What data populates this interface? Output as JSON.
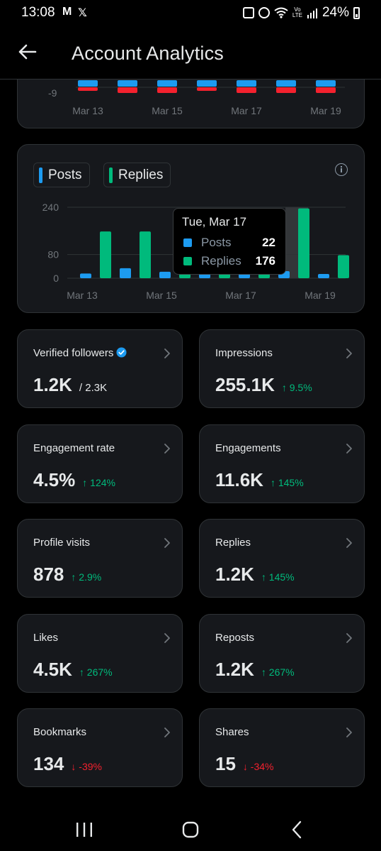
{
  "status": {
    "time": "13:08",
    "battery": "24%",
    "app_icons": [
      "gmail-icon",
      "x-icon"
    ],
    "right_icons": [
      "wallet-icon",
      "alarm-icon",
      "wifi-icon",
      "volte-icon",
      "signal-icon",
      "battery-icon"
    ]
  },
  "header": {
    "title": "Account Analytics"
  },
  "top_chart": {
    "y_tick": "-9",
    "x_labels": [
      "Mar 13",
      "Mar 15",
      "Mar 17",
      "Mar 19"
    ]
  },
  "chart": {
    "legend": [
      {
        "label": "Posts",
        "color": "#1d9bf0"
      },
      {
        "label": "Replies",
        "color": "#00ba7c"
      }
    ],
    "y_ticks": [
      "240",
      "80",
      "0"
    ],
    "x_labels": [
      "Mar 13",
      "Mar 15",
      "Mar 17",
      "Mar 19"
    ],
    "tooltip": {
      "date": "Tue, Mar 17",
      "rows": [
        {
          "name": "Posts",
          "value": "22",
          "color": "#1d9bf0"
        },
        {
          "name": "Replies",
          "value": "176",
          "color": "#00ba7c"
        }
      ]
    }
  },
  "chart_data": {
    "type": "bar",
    "categories": [
      "Mar 13",
      "Mar 14",
      "Mar 15",
      "Mar 16",
      "Mar 17",
      "Mar 18",
      "Mar 19"
    ],
    "series": [
      {
        "name": "Posts",
        "values": [
          16,
          34,
          22,
          20,
          22,
          24,
          14
        ]
      },
      {
        "name": "Replies",
        "values": [
          158,
          158,
          155,
          160,
          176,
          236,
          78
        ]
      }
    ],
    "ylim": [
      0,
      240
    ],
    "y_ticks": [
      0,
      80,
      240
    ],
    "highlighted_category": "Mar 18",
    "grid": true
  },
  "metrics": [
    {
      "label": "Verified followers",
      "value": "1.2K",
      "sub": "/ 2.3K",
      "change": "",
      "direction": "",
      "verified": true
    },
    {
      "label": "Impressions",
      "value": "255.1K",
      "sub": "",
      "change": "↑ 9.5%",
      "direction": "up"
    },
    {
      "label": "Engagement rate",
      "value": "4.5%",
      "sub": "",
      "change": "↑ 124%",
      "direction": "up"
    },
    {
      "label": "Engagements",
      "value": "11.6K",
      "sub": "",
      "change": "↑ 145%",
      "direction": "up"
    },
    {
      "label": "Profile visits",
      "value": "878",
      "sub": "",
      "change": "↑ 2.9%",
      "direction": "up"
    },
    {
      "label": "Replies",
      "value": "1.2K",
      "sub": "",
      "change": "↑ 145%",
      "direction": "up"
    },
    {
      "label": "Likes",
      "value": "4.5K",
      "sub": "",
      "change": "↑ 267%",
      "direction": "up"
    },
    {
      "label": "Reposts",
      "value": "1.2K",
      "sub": "",
      "change": "↑ 267%",
      "direction": "up"
    },
    {
      "label": "Bookmarks",
      "value": "134",
      "sub": "",
      "change": "↓ -39%",
      "direction": "down"
    },
    {
      "label": "Shares",
      "value": "15",
      "sub": "",
      "change": "↓ -34%",
      "direction": "down"
    }
  ],
  "colors": {
    "up": "#00ba7c",
    "down": "#f4212e",
    "posts": "#1d9bf0",
    "replies": "#00ba7c",
    "negative": "#f4212e",
    "highlight": "#333639",
    "verified": "#1d9bf0"
  },
  "nav": [
    "recents-icon",
    "home-icon",
    "back-icon"
  ]
}
